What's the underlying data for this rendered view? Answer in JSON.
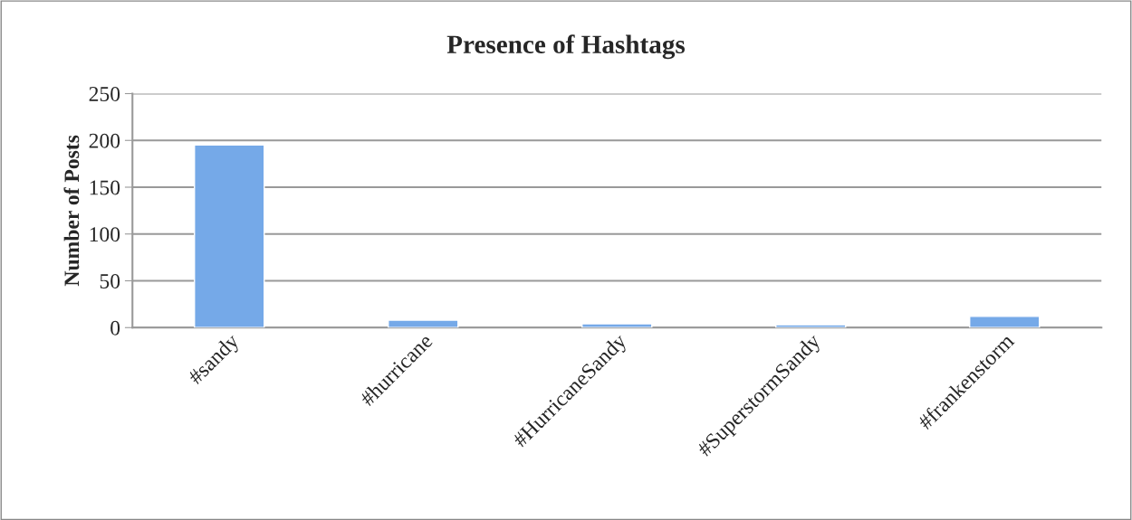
{
  "chart_data": {
    "type": "bar",
    "title": "Presence of Hashtags",
    "ylabel": "Number of Posts",
    "categories": [
      "#sandy",
      "#hurricane",
      "#HurricaneSandy",
      "#SuperstormSandy",
      "#frankenstorm"
    ],
    "values": [
      195,
      8,
      4,
      3,
      12
    ],
    "color": "#75a9e8",
    "ylim": [
      0,
      250
    ],
    "yticks": [
      0,
      50,
      100,
      150,
      200,
      250
    ],
    "grid": "y",
    "legend": false
  }
}
